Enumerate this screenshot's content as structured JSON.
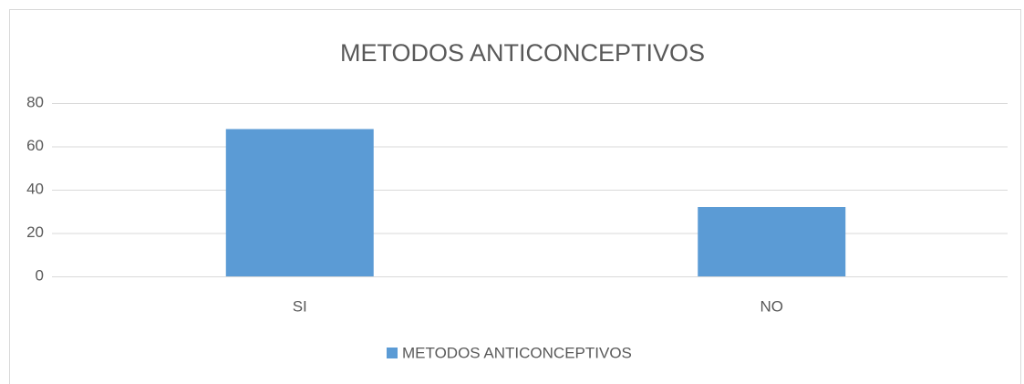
{
  "chart_data": {
    "type": "bar",
    "title": "METODOS ANTICONCEPTIVOS",
    "categories": [
      "SI",
      "NO"
    ],
    "series": [
      {
        "name": "METODOS ANTICONCEPTIVOS",
        "color": "#5b9bd5",
        "values": [
          68,
          32
        ]
      }
    ],
    "ylim": [
      0,
      80
    ],
    "yticks": [
      0,
      20,
      40,
      60,
      80
    ],
    "grid": true,
    "legend": "bottom"
  }
}
